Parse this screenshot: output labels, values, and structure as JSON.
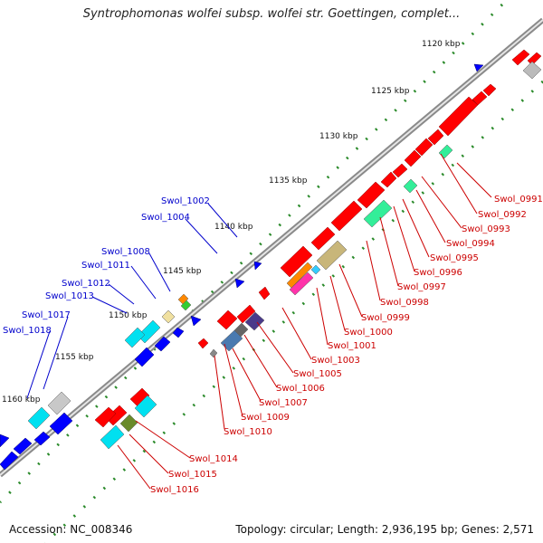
{
  "title": "Syntrophomonas wolfei subsp. wolfei str. Goettingen, complet...",
  "footer": {
    "accession": "Accession: NC_008346",
    "summary": "Topology: circular; Length: 2,936,195 bp; Genes: 2,571"
  },
  "scale_labels": [
    "1120 kbp",
    "1125 kbp",
    "1130 kbp",
    "1135 kbp",
    "1140 kbp",
    "1145 kbp",
    "1150 kbp",
    "1155 kbp",
    "1160 kbp"
  ],
  "forward_gene_labels": [
    "Swol_1002",
    "Swol_1004",
    "Swol_1008",
    "Swol_1011",
    "Swol_1012",
    "Swol_1013",
    "Swol_1017",
    "Swol_1018"
  ],
  "reverse_gene_labels": [
    "Swol_0991",
    "Swol_0992",
    "Swol_0993",
    "Swol_0994",
    "Swol_0995",
    "Swol_0996",
    "Swol_0997",
    "Swol_0998",
    "Swol_0999",
    "Swol_1000",
    "Swol_1001",
    "Swol_1003",
    "Swol_1005",
    "Swol_1006",
    "Swol_1007",
    "Swol_1009",
    "Swol_1010",
    "Swol_1014",
    "Swol_1015",
    "Swol_1016"
  ],
  "colors": {
    "backbone": "#9a9a9a",
    "forward_label": "#0000cc",
    "reverse_label": "#cc0000",
    "ticks": "#2a8a2a"
  }
}
